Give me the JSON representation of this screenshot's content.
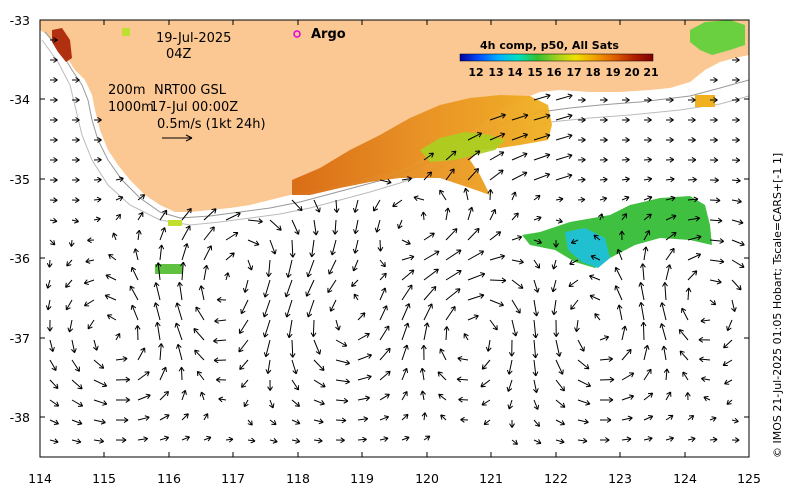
{
  "map": {
    "date_label": "19-Jul-2025",
    "hour_label": "04Z",
    "argo_label": "Argo",
    "depth_label": "200m",
    "depth2_label": "1000m",
    "product_label": "NRT00 GSL",
    "product_time": "17-Jul 00:00Z",
    "velocity_scale_label": "0.5m/s (1kt 24h)",
    "credit": "© IMOS 21-Jul-2025 01:05 Hobart; Tscale=CARS+[-1 1]",
    "legend_title": "4h comp, p50, All Sats",
    "legend_ticks": [
      "12",
      "13",
      "14",
      "15",
      "16",
      "17",
      "18",
      "19",
      "20",
      "21"
    ],
    "x_ticks": [
      "114",
      "115",
      "116",
      "117",
      "118",
      "119",
      "120",
      "121",
      "122",
      "123",
      "124",
      "125"
    ],
    "y_ticks": [
      "-33",
      "-34",
      "-35",
      "-36",
      "-37",
      "-38"
    ],
    "lon_range": [
      114,
      125
    ],
    "lat_range": [
      -38.5,
      -33
    ],
    "colors": {
      "land": "#fbc793",
      "argo_marker": "#e000e0",
      "colormap": [
        "#0000a0",
        "#0050ff",
        "#00b0ff",
        "#00e0c0",
        "#30c030",
        "#a0d020",
        "#f0e000",
        "#f0a000",
        "#e06000",
        "#b02000",
        "#800000"
      ]
    }
  }
}
